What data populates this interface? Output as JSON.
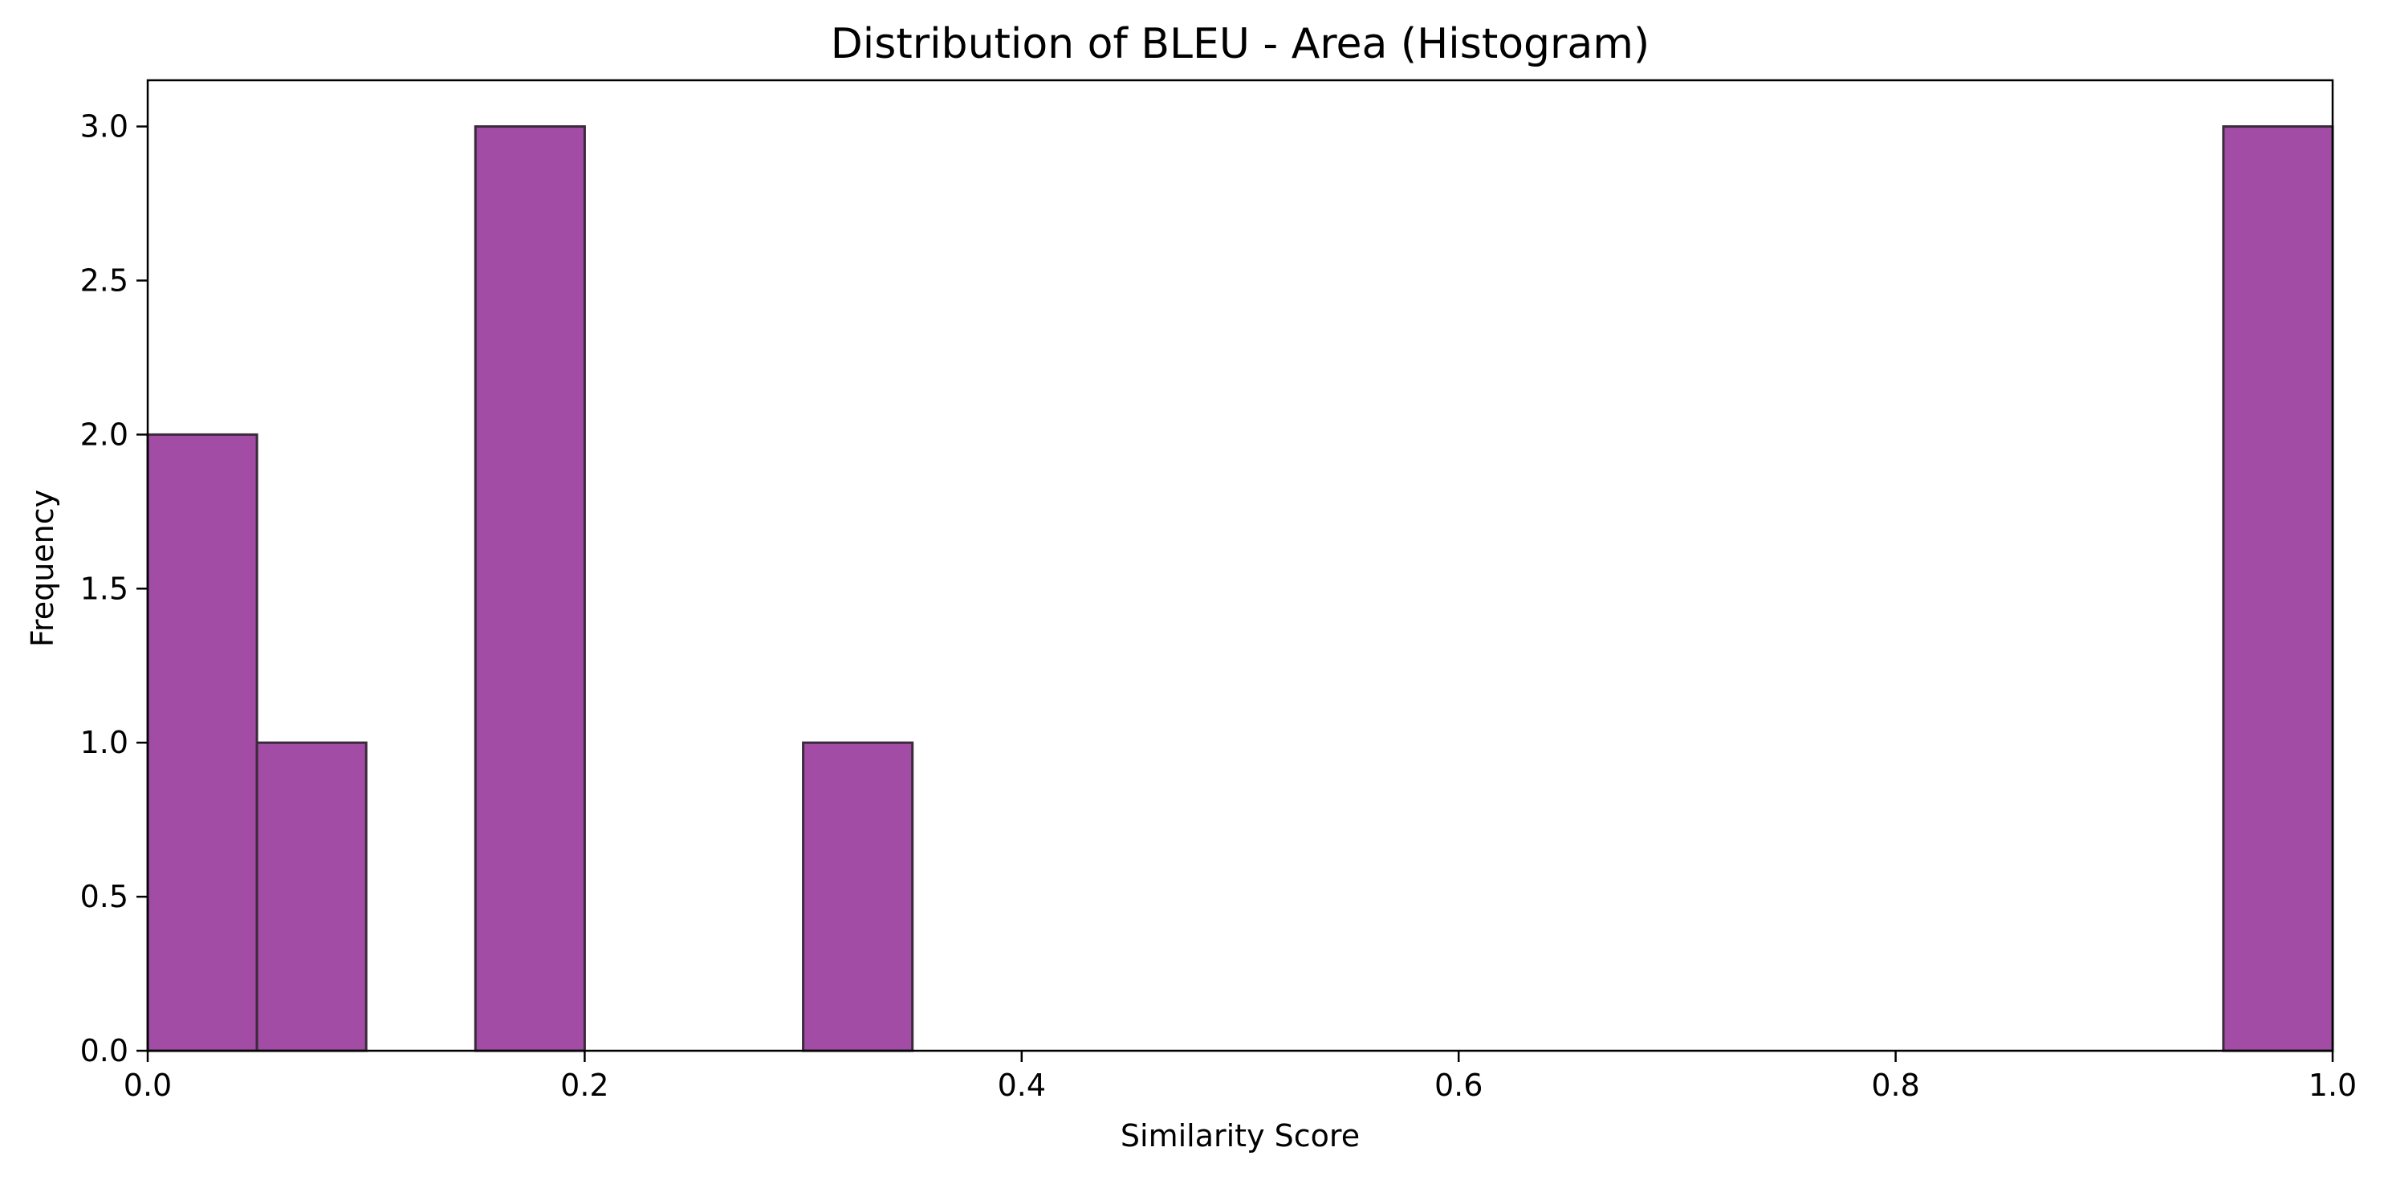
{
  "chart_data": {
    "type": "bar",
    "subtype": "histogram",
    "title": "Distribution of BLEU - Area (Histogram)",
    "xlabel": "Similarity Score",
    "ylabel": "Frequency",
    "xlim": [
      0.0,
      1.0
    ],
    "ylim": [
      0.0,
      3.15
    ],
    "bin_width": 0.05,
    "bins": [
      {
        "start": 0.0,
        "end": 0.05,
        "count": 2
      },
      {
        "start": 0.05,
        "end": 0.1,
        "count": 1
      },
      {
        "start": 0.15,
        "end": 0.2,
        "count": 3
      },
      {
        "start": 0.3,
        "end": 0.35,
        "count": 1
      },
      {
        "start": 0.95,
        "end": 1.0,
        "count": 3
      }
    ],
    "xticks": [
      "0.0",
      "0.2",
      "0.4",
      "0.6",
      "0.8",
      "1.0"
    ],
    "xtick_values": [
      0.0,
      0.2,
      0.4,
      0.6,
      0.8,
      1.0
    ],
    "yticks": [
      "0.0",
      "0.5",
      "1.0",
      "1.5",
      "2.0",
      "2.5",
      "3.0"
    ],
    "ytick_values": [
      0.0,
      0.5,
      1.0,
      1.5,
      2.0,
      2.5,
      3.0
    ],
    "grid": false,
    "legend": "none",
    "colors": {
      "bar_fill": "#a24ca6",
      "bar_edge": "#3a2a3a",
      "axis": "#000000"
    }
  }
}
